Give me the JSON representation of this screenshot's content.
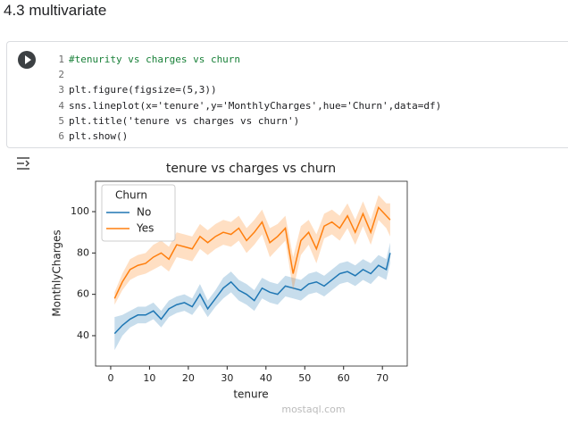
{
  "heading": "4.3 multivariate",
  "code": {
    "lines": [
      {
        "number": 1,
        "text": "#tenurity vs charges vs churn"
      },
      {
        "number": 2,
        "text": ""
      },
      {
        "number": 3,
        "text": "plt.figure(figsize=(5,3))"
      },
      {
        "number": 4,
        "text": "sns.lineplot(x='tenure',y='MonthlyCharges',hue='Churn',data=df)"
      },
      {
        "number": 5,
        "text": "plt.title('tenure vs charges vs churn')"
      },
      {
        "number": 6,
        "text": "plt.show()"
      }
    ]
  },
  "watermark": "mostaql.com",
  "chart_data": {
    "type": "line",
    "title": "tenure vs charges vs churn",
    "xlabel": "tenure",
    "ylabel": "MonthlyCharges",
    "legend_title": "Churn",
    "legend": "upper left",
    "x": [
      1,
      3,
      5,
      7,
      9,
      11,
      13,
      15,
      17,
      19,
      21,
      23,
      25,
      27,
      29,
      31,
      33,
      35,
      37,
      39,
      41,
      43,
      45,
      47,
      49,
      51,
      53,
      55,
      57,
      59,
      61,
      63,
      65,
      67,
      69,
      71,
      72
    ],
    "xlim": [
      -3.9,
      76.4
    ],
    "xticks": [
      0,
      10,
      20,
      30,
      40,
      50,
      60,
      70
    ],
    "ylim": [
      25.3,
      114.7
    ],
    "yticks": [
      40,
      60,
      80,
      100
    ],
    "series": [
      {
        "name": "No",
        "color": "#1f77b4",
        "values": [
          41,
          45,
          48,
          50,
          50,
          52,
          48,
          53,
          55,
          56,
          54,
          60,
          53,
          58,
          63,
          66,
          62,
          60,
          57,
          63,
          61,
          60,
          64,
          63,
          62,
          65,
          66,
          64,
          67,
          70,
          71,
          69,
          72,
          70,
          74,
          72,
          80
        ],
        "ci_low": [
          33,
          40,
          44,
          46,
          46,
          48,
          44,
          49,
          51,
          52,
          50,
          55,
          49,
          54,
          58,
          61,
          57,
          55,
          52,
          58,
          56,
          55,
          59,
          58,
          57,
          60,
          61,
          59,
          62,
          65,
          66,
          64,
          67,
          65,
          69,
          67,
          75
        ],
        "ci_high": [
          49,
          50,
          52,
          54,
          54,
          56,
          52,
          57,
          59,
          60,
          58,
          65,
          57,
          62,
          68,
          71,
          67,
          65,
          62,
          68,
          66,
          65,
          69,
          68,
          67,
          70,
          71,
          69,
          72,
          75,
          76,
          74,
          77,
          75,
          79,
          77,
          85
        ]
      },
      {
        "name": "Yes",
        "color": "#ff7f0e",
        "values": [
          58,
          66,
          72,
          74,
          75,
          78,
          80,
          77,
          84,
          83,
          82,
          88,
          85,
          88,
          90,
          89,
          92,
          86,
          90,
          95,
          85,
          88,
          92,
          70,
          86,
          90,
          82,
          93,
          95,
          92,
          98,
          90,
          99,
          90,
          102,
          98,
          96
        ],
        "ci_low": [
          55,
          62,
          67,
          69,
          70,
          72,
          74,
          71,
          78,
          77,
          76,
          82,
          79,
          82,
          84,
          83,
          86,
          80,
          84,
          89,
          78,
          82,
          86,
          62,
          79,
          84,
          75,
          87,
          89,
          86,
          92,
          84,
          93,
          84,
          96,
          92,
          88
        ],
        "ci_high": [
          61,
          70,
          77,
          79,
          80,
          84,
          86,
          83,
          90,
          89,
          88,
          94,
          91,
          94,
          96,
          95,
          98,
          92,
          96,
          101,
          92,
          94,
          98,
          78,
          93,
          96,
          89,
          99,
          101,
          98,
          104,
          96,
          105,
          96,
          108,
          104,
          104
        ]
      }
    ]
  }
}
